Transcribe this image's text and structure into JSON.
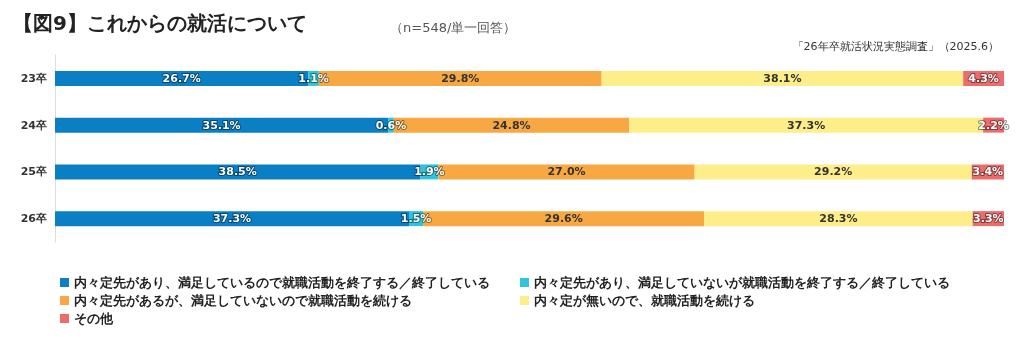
{
  "chart_data": {
    "type": "bar",
    "orientation": "horizontal",
    "stacked": true,
    "legend": "bottom",
    "title": "【図9】これからの就活について",
    "subtitle": "（n=548/単一回答）",
    "annotations": [
      "「26年卒就活状況実態調査」（2025.6）"
    ],
    "categories": [
      "23卒",
      "24卒",
      "25卒",
      "26卒"
    ],
    "series": [
      {
        "name": "内々定先があり、満足しているので就職活動を終了する／終了している",
        "color": "#0a7fc4",
        "values": [
          26.7,
          35.1,
          38.5,
          37.3
        ],
        "value_labels": [
          "26.7%",
          "35.1%",
          "38.5%",
          "37.3%"
        ]
      },
      {
        "name": "内々定先があり、満足していないが就職活動を終了する／終了している",
        "color": "#2ec4dc",
        "values": [
          1.1,
          0.6,
          1.9,
          1.5
        ],
        "value_labels": [
          "1.1%",
          "0.6%",
          "1.9%",
          "1.5%"
        ]
      },
      {
        "name": "内々定先があるが、満足していないので就職活動を続ける",
        "color": "#f8a842",
        "values": [
          29.8,
          24.8,
          27.0,
          29.6
        ],
        "value_labels": [
          "29.8%",
          "24.8%",
          "27.0%",
          "29.6%"
        ]
      },
      {
        "name": "内々定が無いので、就職活動を続ける",
        "color": "#fdee8a",
        "values": [
          38.1,
          37.3,
          29.2,
          28.3
        ],
        "value_labels": [
          "38.1%",
          "37.3%",
          "29.2%",
          "28.3%"
        ]
      },
      {
        "name": "その他",
        "color": "#ee6b6b",
        "values": [
          4.3,
          2.2,
          3.4,
          3.3
        ],
        "value_labels": [
          "4.3%",
          "2.2%",
          "3.4%",
          "3.3%"
        ]
      }
    ]
  }
}
